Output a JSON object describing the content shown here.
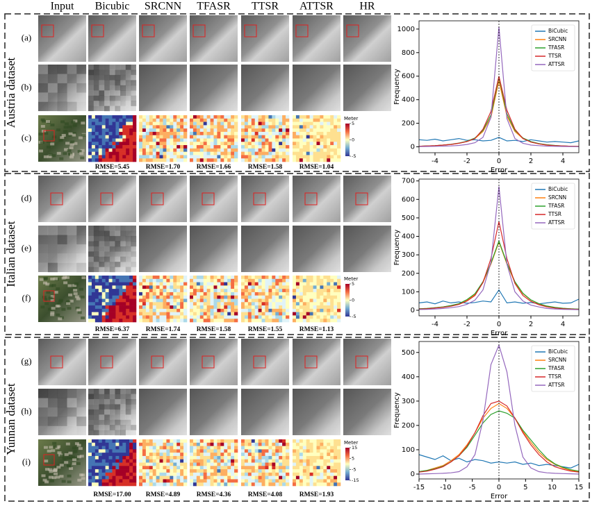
{
  "header": {
    "columns": [
      "Input",
      "Bicubic",
      "SRCNN",
      "TFASR",
      "TTSR",
      "ATTSR",
      "HR"
    ]
  },
  "panels": [
    {
      "name": "Austria dataset",
      "rows": [
        "(a)",
        "(b)",
        "(c)"
      ],
      "rmse": [
        "RMSE=5.45",
        "RMSE=1.70",
        "RMSE=1.66",
        "RMSE=1.58",
        "RMSE=1.04"
      ],
      "colorbar": {
        "label": "Meter",
        "lim": [
          -5,
          5
        ],
        "ticks": [
          5,
          0,
          -5
        ]
      }
    },
    {
      "name": "Italian dataset",
      "rows": [
        "(d)",
        "(e)",
        "(f)"
      ],
      "rmse": [
        "RMSE=6.37",
        "RMSE=1.74",
        "RMSE=1.58",
        "RMSE=1.55",
        "RMSE=1.13"
      ],
      "colorbar": {
        "label": "Meter",
        "lim": [
          -5,
          5
        ],
        "ticks": [
          5,
          0,
          -5
        ]
      }
    },
    {
      "name": "Yunnan dataset",
      "rows": [
        "(g)",
        "(h)",
        "(i)"
      ],
      "rmse": [
        "RMSE=17.00",
        "RMSE=4.89",
        "RMSE=4.36",
        "RMSE=4.08",
        "RMSE=1.93"
      ],
      "colorbar": {
        "label": "Meter",
        "lim": [
          -15,
          15
        ],
        "ticks": [
          15,
          5,
          -5,
          -15
        ]
      }
    }
  ],
  "chart_data": [
    {
      "type": "line",
      "x_label": "Error",
      "y_label": "Frequency",
      "legend": "upper right",
      "vline": 0,
      "x": [
        -5,
        -4.5,
        -4,
        -3.5,
        -3,
        -2.5,
        -2,
        -1.5,
        -1,
        -0.5,
        0,
        0.5,
        1,
        1.5,
        2,
        2.5,
        3,
        3.5,
        4,
        4.5,
        5
      ],
      "xlim": [
        -5,
        5
      ],
      "xticks": [
        -4,
        -2,
        0,
        2,
        4
      ],
      "ylim": [
        -50,
        1070
      ],
      "yticks": [
        0,
        200,
        400,
        600,
        800,
        1000
      ],
      "series": [
        {
          "name": "BiCubic",
          "color": "#1f77b4",
          "values": [
            60,
            55,
            65,
            50,
            60,
            70,
            55,
            60,
            50,
            55,
            80,
            50,
            55,
            45,
            60,
            50,
            40,
            45,
            40,
            35,
            50
          ]
        },
        {
          "name": "SRCNN",
          "color": "#ff7f0e",
          "values": [
            5,
            8,
            10,
            15,
            20,
            30,
            45,
            70,
            130,
            250,
            560,
            260,
            130,
            70,
            40,
            25,
            15,
            10,
            8,
            5,
            3
          ]
        },
        {
          "name": "TFASR",
          "color": "#2ca02c",
          "values": [
            5,
            8,
            10,
            15,
            22,
            32,
            48,
            75,
            140,
            270,
            590,
            280,
            140,
            75,
            45,
            28,
            18,
            12,
            8,
            5,
            3
          ]
        },
        {
          "name": "TTSR",
          "color": "#d62728",
          "values": [
            5,
            8,
            10,
            15,
            20,
            30,
            45,
            70,
            150,
            300,
            600,
            310,
            150,
            70,
            40,
            25,
            15,
            10,
            8,
            5,
            3
          ]
        },
        {
          "name": "ATTSR",
          "color": "#9467bd",
          "values": [
            2,
            3,
            4,
            6,
            8,
            12,
            20,
            35,
            80,
            250,
            1020,
            240,
            70,
            30,
            15,
            10,
            6,
            4,
            3,
            2,
            1
          ]
        }
      ]
    },
    {
      "type": "line",
      "x_label": "Error",
      "y_label": "Frequency",
      "legend": "upper right",
      "vline": 0,
      "x": [
        -5,
        -4.5,
        -4,
        -3.5,
        -3,
        -2.5,
        -2,
        -1.5,
        -1,
        -0.5,
        0,
        0.5,
        1,
        1.5,
        2,
        2.5,
        3,
        3.5,
        4,
        4.5,
        5
      ],
      "xlim": [
        -5,
        5
      ],
      "xticks": [
        -4,
        -2,
        0,
        2,
        4
      ],
      "ylim": [
        -30,
        710
      ],
      "yticks": [
        0,
        100,
        200,
        300,
        400,
        500,
        600,
        700
      ],
      "series": [
        {
          "name": "BiCubic",
          "color": "#1f77b4",
          "values": [
            40,
            45,
            35,
            50,
            40,
            45,
            38,
            42,
            50,
            45,
            110,
            40,
            45,
            38,
            42,
            35,
            40,
            45,
            38,
            40,
            60
          ]
        },
        {
          "name": "SRCNN",
          "color": "#ff7f0e",
          "values": [
            8,
            10,
            14,
            18,
            25,
            35,
            55,
            85,
            150,
            250,
            370,
            250,
            150,
            90,
            55,
            35,
            22,
            15,
            10,
            8,
            6
          ]
        },
        {
          "name": "TFASR",
          "color": "#2ca02c",
          "values": [
            8,
            10,
            14,
            18,
            26,
            36,
            58,
            90,
            155,
            255,
            375,
            255,
            155,
            92,
            56,
            36,
            23,
            16,
            11,
            8,
            6
          ]
        },
        {
          "name": "TTSR",
          "color": "#d62728",
          "values": [
            6,
            8,
            12,
            16,
            22,
            32,
            50,
            80,
            150,
            280,
            480,
            280,
            145,
            80,
            48,
            30,
            18,
            12,
            8,
            6,
            4
          ]
        },
        {
          "name": "ATTSR",
          "color": "#9467bd",
          "values": [
            4,
            5,
            7,
            10,
            14,
            20,
            32,
            55,
            110,
            260,
            670,
            250,
            100,
            50,
            28,
            18,
            10,
            7,
            5,
            4,
            3
          ]
        }
      ]
    },
    {
      "type": "line",
      "x_label": "Error",
      "y_label": "Frequency",
      "legend": "upper right",
      "vline": 0,
      "x": [
        -15,
        -13.5,
        -12,
        -10.5,
        -9,
        -7.5,
        -6,
        -4.5,
        -3,
        -1.5,
        0,
        1.5,
        3,
        4.5,
        6,
        7.5,
        9,
        10.5,
        12,
        13.5,
        15
      ],
      "xlim": [
        -15,
        15
      ],
      "xticks": [
        -15,
        -10,
        -5,
        0,
        5,
        10,
        15
      ],
      "ylim": [
        -20,
        545
      ],
      "yticks": [
        0,
        100,
        200,
        300,
        400,
        500
      ],
      "series": [
        {
          "name": "BiCubic",
          "color": "#1f77b4",
          "values": [
            80,
            70,
            60,
            75,
            55,
            65,
            50,
            60,
            55,
            45,
            50,
            45,
            50,
            40,
            45,
            35,
            40,
            35,
            30,
            25,
            40
          ]
        },
        {
          "name": "SRCNN",
          "color": "#ff7f0e",
          "values": [
            10,
            15,
            25,
            35,
            55,
            80,
            120,
            170,
            230,
            270,
            290,
            270,
            230,
            175,
            130,
            90,
            60,
            40,
            25,
            15,
            10
          ]
        },
        {
          "name": "TFASR",
          "color": "#2ca02c",
          "values": [
            10,
            15,
            22,
            32,
            50,
            75,
            110,
            160,
            210,
            245,
            260,
            250,
            230,
            180,
            140,
            100,
            65,
            42,
            28,
            18,
            12
          ]
        },
        {
          "name": "TTSR",
          "color": "#d62728",
          "values": [
            8,
            12,
            20,
            30,
            50,
            75,
            115,
            170,
            240,
            290,
            300,
            280,
            230,
            170,
            120,
            80,
            50,
            30,
            20,
            12,
            8
          ]
        },
        {
          "name": "ATTSR",
          "color": "#9467bd",
          "values": [
            0,
            1,
            2,
            3,
            5,
            10,
            30,
            80,
            220,
            450,
            530,
            420,
            200,
            70,
            25,
            10,
            5,
            3,
            2,
            1,
            0
          ]
        }
      ]
    }
  ]
}
